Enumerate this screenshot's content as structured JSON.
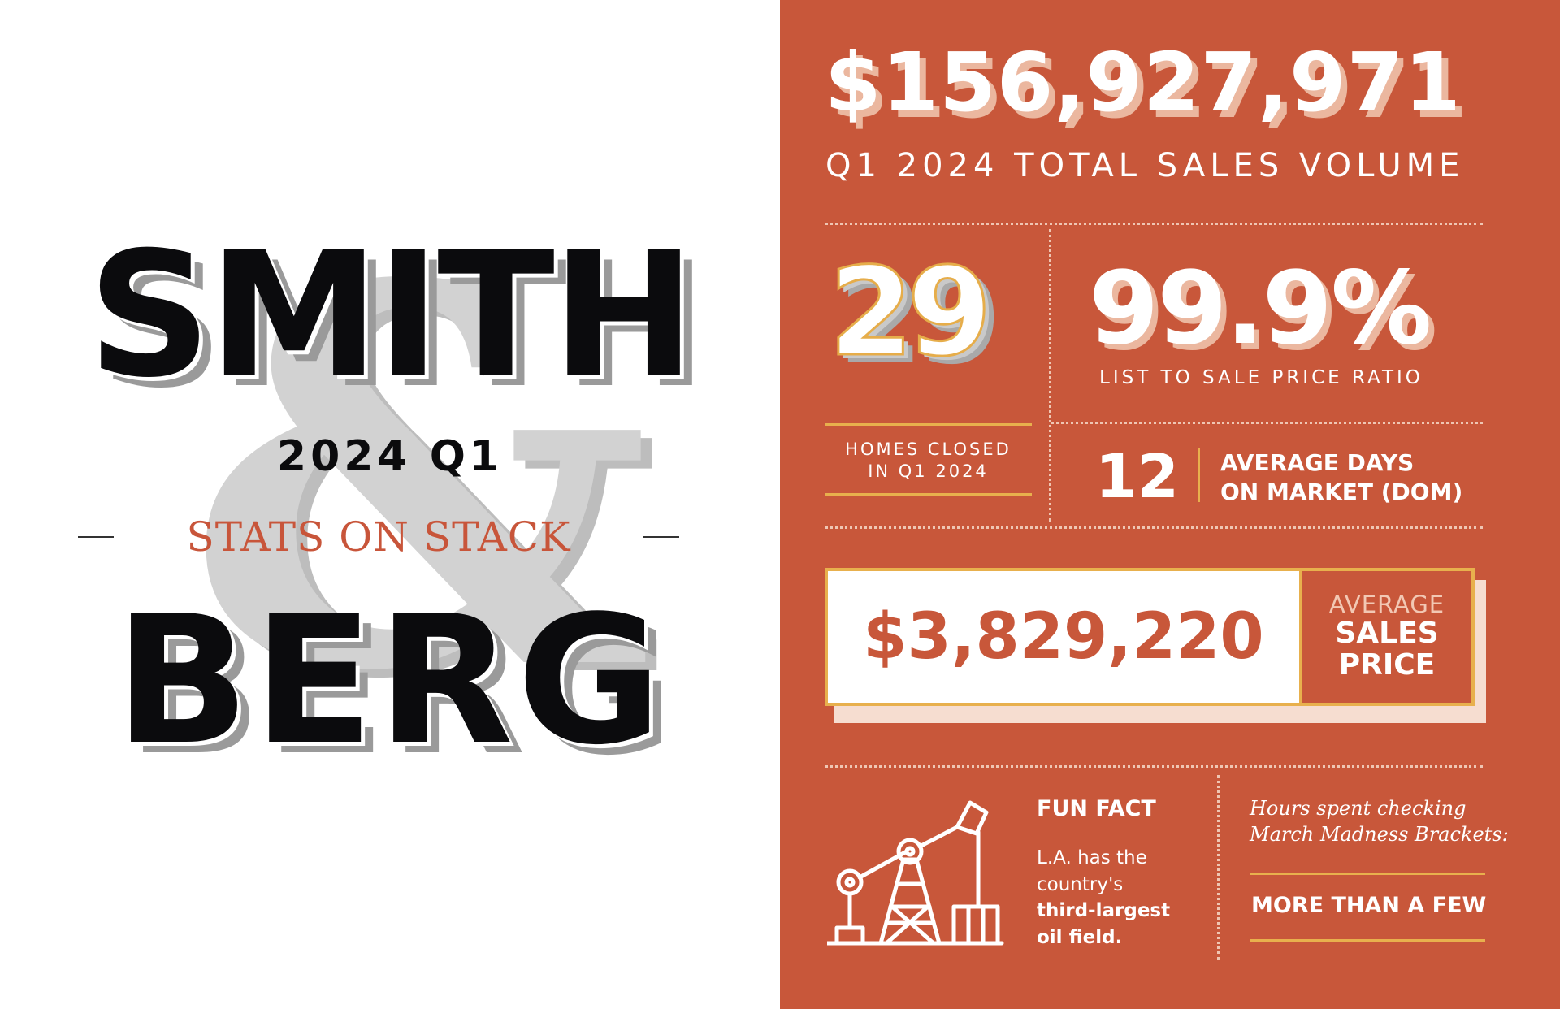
{
  "left": {
    "brand_top": "SMITH",
    "ampersand": "&",
    "period": "2024 Q1",
    "subtitle": "STATS ON STACK",
    "brand_bottom": "BERG"
  },
  "right": {
    "total_sales": {
      "value": "$156,927,971",
      "label": "Q1 2024 TOTAL SALES VOLUME"
    },
    "homes_closed": {
      "value": "29",
      "label_line1": "HOMES CLOSED",
      "label_line2": "IN Q1 2024"
    },
    "list_to_sale": {
      "value": "99.9%",
      "label": "LIST TO SALE PRICE RATIO"
    },
    "dom": {
      "value": "12",
      "label_line1": "AVERAGE DAYS",
      "label_line2": "ON MARKET (DOM)"
    },
    "avg_price": {
      "value": "$3,829,220",
      "label_line1": "AVERAGE",
      "label_line2": "SALES",
      "label_line3": "PRICE"
    },
    "fun_fact": {
      "title": "FUN FACT",
      "text_line1": "L.A. has the",
      "text_line2": "country's",
      "bold_line1": "third-largest",
      "bold_line2": "oil field.",
      "icon": "oil-pump-icon"
    },
    "hours": {
      "line1": "Hours spent checking",
      "line2": "March Madness Brackets:",
      "answer": "MORE THAN A FEW"
    }
  },
  "colors": {
    "accent": "#c8573a",
    "gold": "#e8b04d",
    "ink": "#0b0b0d",
    "ampersand": "#d2d2d2"
  }
}
